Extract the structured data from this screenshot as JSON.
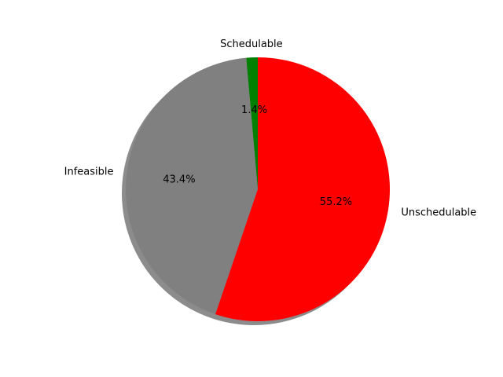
{
  "chart_data": {
    "type": "pie",
    "title": "",
    "slices": [
      {
        "label": "Schedulable",
        "value": 1.4,
        "pct_label": "1.4%",
        "color": "#008000"
      },
      {
        "label": "Infeasible",
        "value": 43.4,
        "pct_label": "43.4%",
        "color": "#808080"
      },
      {
        "label": "Unschedulable",
        "value": 55.2,
        "pct_label": "55.2%",
        "color": "#ff0000"
      }
    ],
    "start_angle_deg": 90,
    "direction": "counterclockwise",
    "shadow": true,
    "legend": "none"
  }
}
